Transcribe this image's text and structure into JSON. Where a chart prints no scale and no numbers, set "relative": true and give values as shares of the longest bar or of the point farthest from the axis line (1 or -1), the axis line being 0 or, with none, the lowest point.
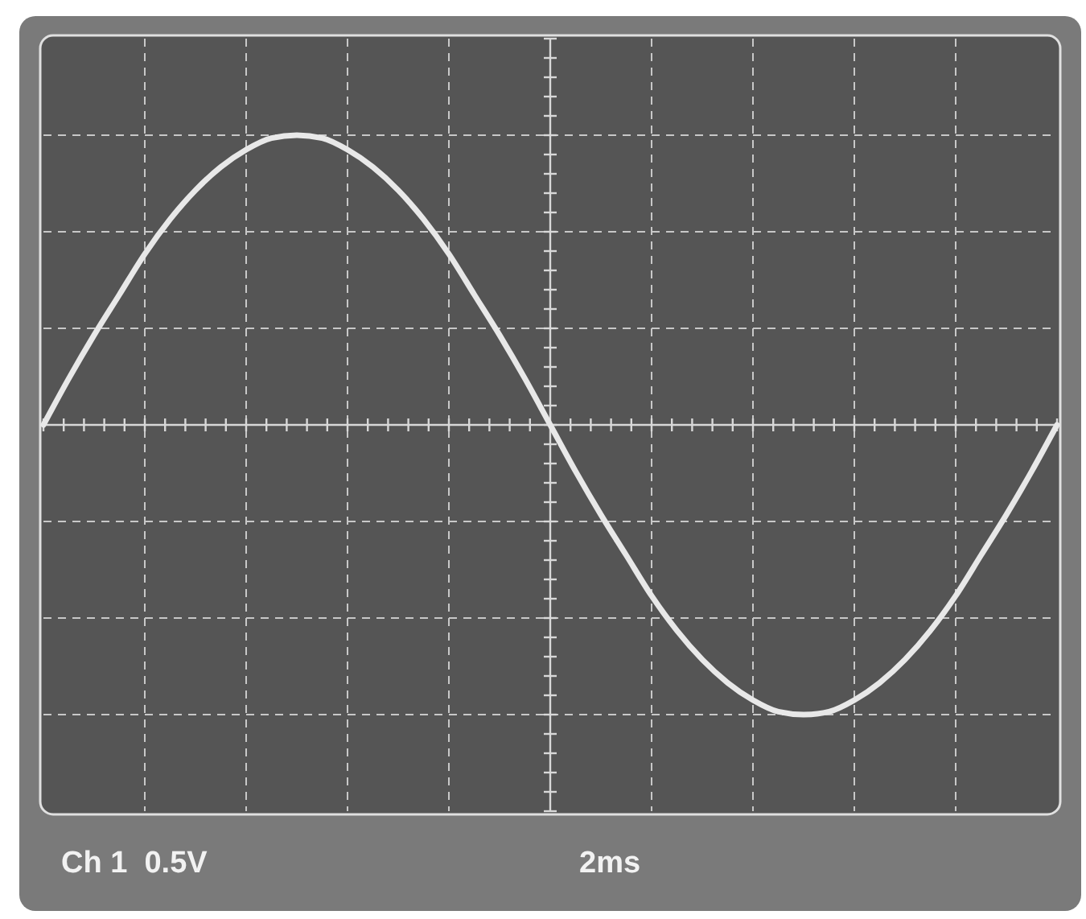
{
  "chart_data": {
    "type": "line",
    "relative": true,
    "grid": true,
    "marker": "none",
    "line_style": "solid",
    "categories": [
      null,
      null,
      null,
      null,
      null,
      null,
      null,
      null,
      null,
      null,
      null,
      null,
      null,
      null,
      null,
      null,
      null,
      null,
      null,
      null,
      null,
      null,
      null,
      null,
      null,
      null,
      null,
      null,
      null,
      null,
      null,
      null,
      null,
      null,
      null,
      null,
      null,
      null,
      null,
      null,
      null
    ],
    "series": [
      {
        "color": "#e8e8e8",
        "values": [
          0,
          0.16,
          0.31,
          0.45,
          0.59,
          0.71,
          0.81,
          0.89,
          0.95,
          0.99,
          1,
          0.99,
          0.95,
          0.89,
          0.81,
          0.71,
          0.59,
          0.45,
          0.31,
          0.16,
          0,
          -0.16,
          -0.31,
          -0.45,
          -0.59,
          -0.71,
          -0.81,
          -0.89,
          -0.95,
          -0.99,
          -1,
          -0.99,
          -0.95,
          -0.89,
          -0.81,
          -0.71,
          -0.59,
          -0.45,
          -0.31,
          -0.16,
          0
        ]
      }
    ],
    "annotations": [
      "Ch 1  0.5V",
      "2ms"
    ]
  }
}
